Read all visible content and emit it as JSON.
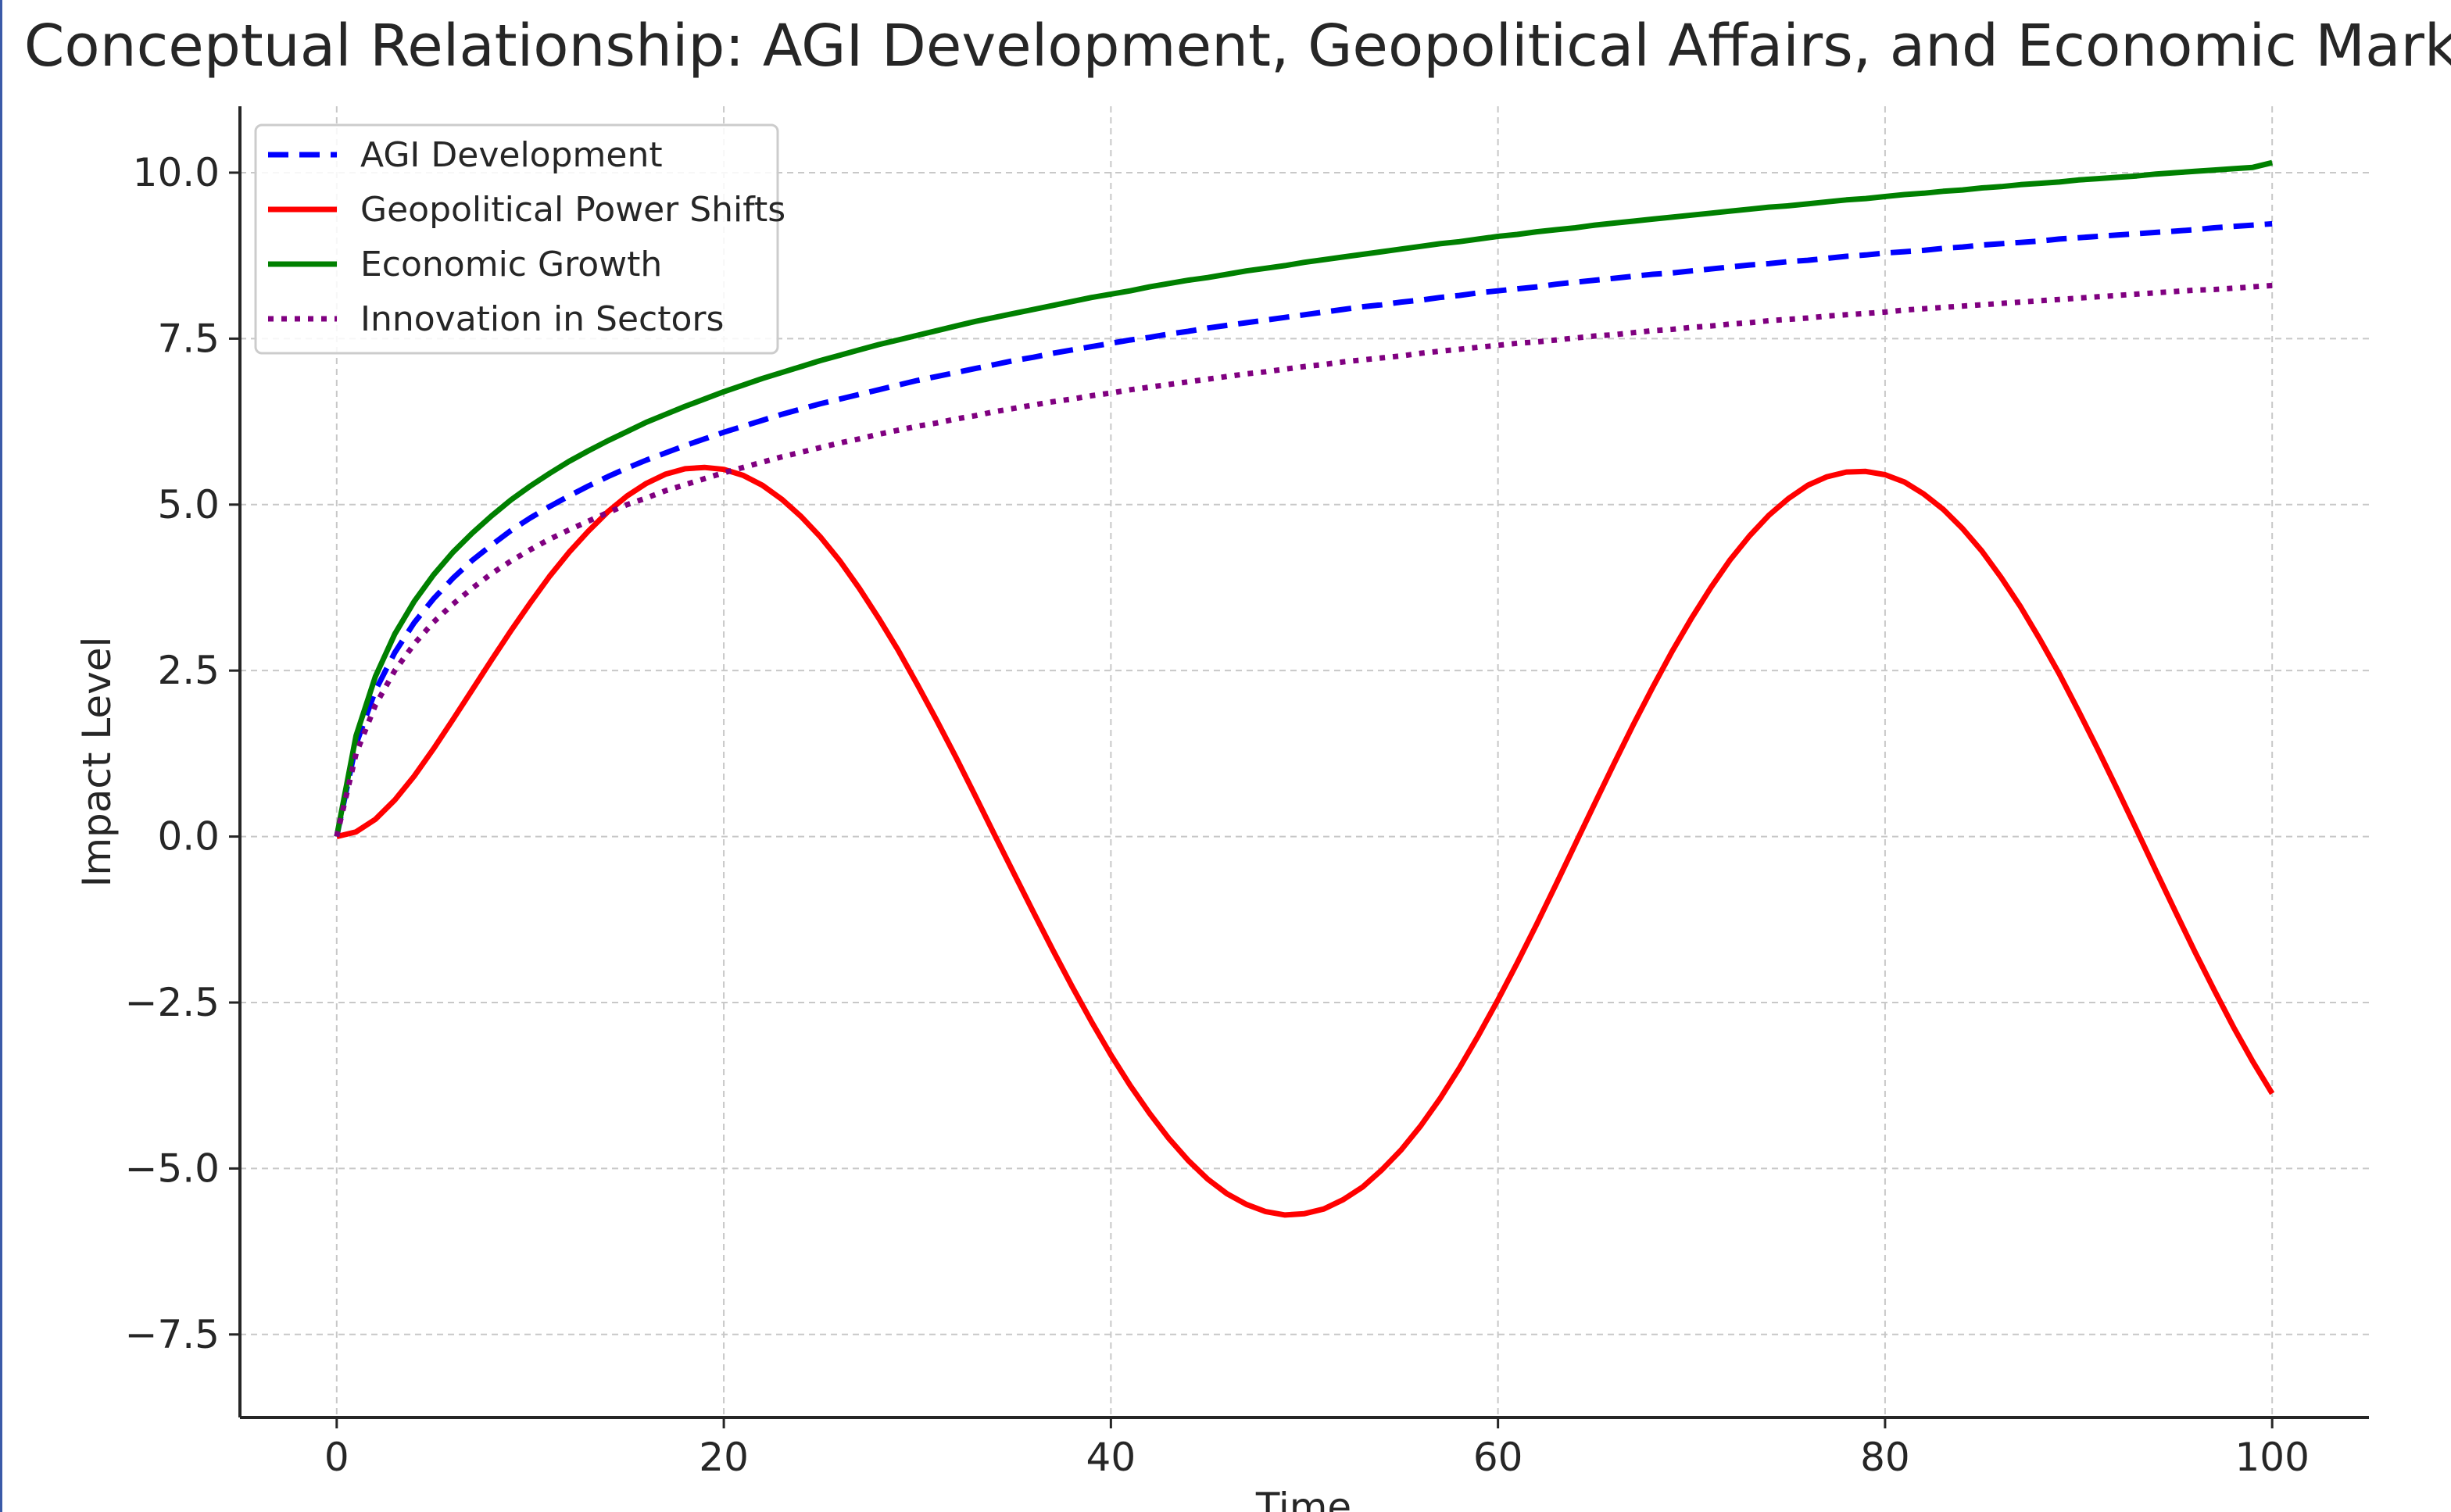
{
  "chart_data": {
    "type": "line",
    "title": "Conceptual Relationship: AGI Development, Geopolitical Affairs, and Economic Markets",
    "xlabel": "Time",
    "ylabel": "Impact Level",
    "xlim": [
      -5,
      105
    ],
    "ylim": [
      -8.75,
      11.0
    ],
    "xticks": [
      0,
      20,
      40,
      60,
      80,
      100
    ],
    "xtick_labels": [
      "0",
      "20",
      "40",
      "60",
      "80",
      "100"
    ],
    "yticks": [
      10.0,
      7.5,
      5.0,
      2.5,
      0.0,
      -2.5,
      -5.0,
      -7.5
    ],
    "ytick_labels": [
      "10.0",
      "7.5",
      "5.0",
      "2.5",
      "0.0",
      "−2.5",
      "−5.0",
      "−7.5"
    ],
    "grid": true,
    "legend_position": "top-left",
    "x": [
      0,
      1,
      2,
      3,
      4,
      5,
      6,
      7,
      8,
      9,
      10,
      11,
      12,
      13,
      14,
      15,
      16,
      17,
      18,
      19,
      20,
      21,
      22,
      23,
      24,
      25,
      26,
      27,
      28,
      29,
      30,
      31,
      32,
      33,
      34,
      35,
      36,
      37,
      38,
      39,
      40,
      41,
      42,
      43,
      44,
      45,
      46,
      47,
      48,
      49,
      50,
      51,
      52,
      53,
      54,
      55,
      56,
      57,
      58,
      59,
      60,
      61,
      62,
      63,
      64,
      65,
      66,
      67,
      68,
      69,
      70,
      71,
      72,
      73,
      74,
      75,
      76,
      77,
      78,
      79,
      80,
      81,
      82,
      83,
      84,
      85,
      86,
      87,
      88,
      89,
      90,
      91,
      92,
      93,
      94,
      95,
      96,
      97,
      98,
      99,
      100
    ],
    "series": [
      {
        "name": "AGI Development",
        "color": "#0000ff",
        "style": "dashed",
        "values": [
          0.0,
          1.39,
          2.2,
          2.77,
          3.22,
          3.58,
          3.89,
          4.16,
          4.39,
          4.61,
          4.8,
          4.97,
          5.13,
          5.28,
          5.42,
          5.55,
          5.67,
          5.78,
          5.89,
          5.99,
          6.09,
          6.18,
          6.27,
          6.36,
          6.44,
          6.52,
          6.59,
          6.66,
          6.73,
          6.8,
          6.87,
          6.93,
          6.99,
          7.05,
          7.11,
          7.17,
          7.22,
          7.28,
          7.33,
          7.38,
          7.43,
          7.48,
          7.52,
          7.57,
          7.61,
          7.66,
          7.7,
          7.74,
          7.78,
          7.82,
          7.86,
          7.9,
          7.94,
          7.98,
          8.01,
          8.05,
          8.08,
          8.12,
          8.15,
          8.19,
          8.22,
          8.25,
          8.28,
          8.32,
          8.35,
          8.38,
          8.41,
          8.44,
          8.47,
          8.49,
          8.52,
          8.55,
          8.58,
          8.61,
          8.63,
          8.66,
          8.68,
          8.71,
          8.74,
          8.76,
          8.79,
          8.81,
          8.83,
          8.86,
          8.88,
          8.91,
          8.93,
          8.95,
          8.97,
          9.0,
          9.02,
          9.04,
          9.06,
          9.08,
          9.1,
          9.12,
          9.14,
          9.17,
          9.19,
          9.21,
          9.23
        ]
      },
      {
        "name": "Geopolitical Power Shifts",
        "color": "#ff0000",
        "style": "solid",
        "values": [
          0.0,
          0.07,
          0.26,
          0.55,
          0.91,
          1.32,
          1.76,
          2.21,
          2.66,
          3.1,
          3.52,
          3.92,
          4.28,
          4.6,
          4.89,
          5.13,
          5.32,
          5.46,
          5.54,
          5.56,
          5.53,
          5.44,
          5.29,
          5.08,
          4.82,
          4.51,
          4.15,
          3.74,
          3.29,
          2.81,
          2.29,
          1.75,
          1.19,
          0.61,
          0.02,
          -0.56,
          -1.14,
          -1.71,
          -2.26,
          -2.79,
          -3.29,
          -3.75,
          -4.17,
          -4.55,
          -4.88,
          -5.16,
          -5.38,
          -5.54,
          -5.65,
          -5.7,
          -5.68,
          -5.61,
          -5.47,
          -5.28,
          -5.02,
          -4.72,
          -4.36,
          -3.95,
          -3.49,
          -2.99,
          -2.46,
          -1.9,
          -1.32,
          -0.72,
          -0.11,
          0.5,
          1.1,
          1.69,
          2.25,
          2.79,
          3.29,
          3.75,
          4.17,
          4.53,
          4.84,
          5.09,
          5.29,
          5.42,
          5.49,
          5.5,
          5.45,
          5.34,
          5.16,
          4.93,
          4.64,
          4.3,
          3.9,
          3.46,
          2.97,
          2.45,
          1.89,
          1.31,
          0.71,
          0.1,
          -0.52,
          -1.13,
          -1.73,
          -2.31,
          -2.87,
          -3.39,
          -3.87
        ]
      },
      {
        "name": "Economic Growth",
        "color": "#008000",
        "style": "solid",
        "values": [
          0.0,
          1.52,
          2.41,
          3.05,
          3.54,
          3.94,
          4.28,
          4.57,
          4.83,
          5.07,
          5.28,
          5.47,
          5.65,
          5.81,
          5.96,
          6.1,
          6.24,
          6.36,
          6.48,
          6.59,
          6.7,
          6.8,
          6.9,
          6.99,
          7.08,
          7.17,
          7.25,
          7.33,
          7.41,
          7.48,
          7.55,
          7.62,
          7.69,
          7.76,
          7.82,
          7.88,
          7.94,
          8.0,
          8.06,
          8.12,
          8.17,
          8.22,
          8.28,
          8.33,
          8.38,
          8.42,
          8.47,
          8.52,
          8.56,
          8.6,
          8.65,
          8.69,
          8.73,
          8.77,
          8.81,
          8.85,
          8.89,
          8.93,
          8.96,
          9.0,
          9.04,
          9.07,
          9.11,
          9.14,
          9.17,
          9.21,
          9.24,
          9.27,
          9.3,
          9.33,
          9.36,
          9.39,
          9.42,
          9.45,
          9.48,
          9.5,
          9.53,
          9.56,
          9.59,
          9.61,
          9.64,
          9.67,
          9.69,
          9.72,
          9.74,
          9.77,
          9.79,
          9.82,
          9.84,
          9.86,
          9.89,
          9.91,
          9.93,
          9.95,
          9.98,
          10.0,
          10.02,
          10.04,
          10.06,
          10.08,
          10.15
        ]
      },
      {
        "name": "Innovation in Sectors",
        "color": "#800080",
        "style": "dotted",
        "values": [
          0.0,
          1.25,
          1.98,
          2.5,
          2.9,
          3.23,
          3.5,
          3.74,
          3.96,
          4.15,
          4.32,
          4.48,
          4.62,
          4.75,
          4.88,
          5.0,
          5.1,
          5.21,
          5.3,
          5.39,
          5.48,
          5.56,
          5.64,
          5.72,
          5.79,
          5.86,
          5.93,
          5.99,
          6.06,
          6.12,
          6.18,
          6.23,
          6.29,
          6.34,
          6.4,
          6.45,
          6.5,
          6.55,
          6.59,
          6.64,
          6.68,
          6.73,
          6.77,
          6.81,
          6.85,
          6.89,
          6.93,
          6.97,
          7.0,
          7.04,
          7.08,
          7.11,
          7.15,
          7.18,
          7.21,
          7.24,
          7.28,
          7.31,
          7.34,
          7.37,
          7.4,
          7.43,
          7.45,
          7.48,
          7.51,
          7.54,
          7.56,
          7.59,
          7.62,
          7.64,
          7.67,
          7.69,
          7.72,
          7.74,
          7.77,
          7.79,
          7.81,
          7.84,
          7.86,
          7.88,
          7.9,
          7.93,
          7.95,
          7.97,
          7.99,
          8.01,
          8.03,
          8.05,
          8.07,
          8.09,
          8.11,
          8.13,
          8.15,
          8.17,
          8.19,
          8.21,
          8.23,
          8.24,
          8.26,
          8.28,
          8.3
        ]
      }
    ]
  }
}
